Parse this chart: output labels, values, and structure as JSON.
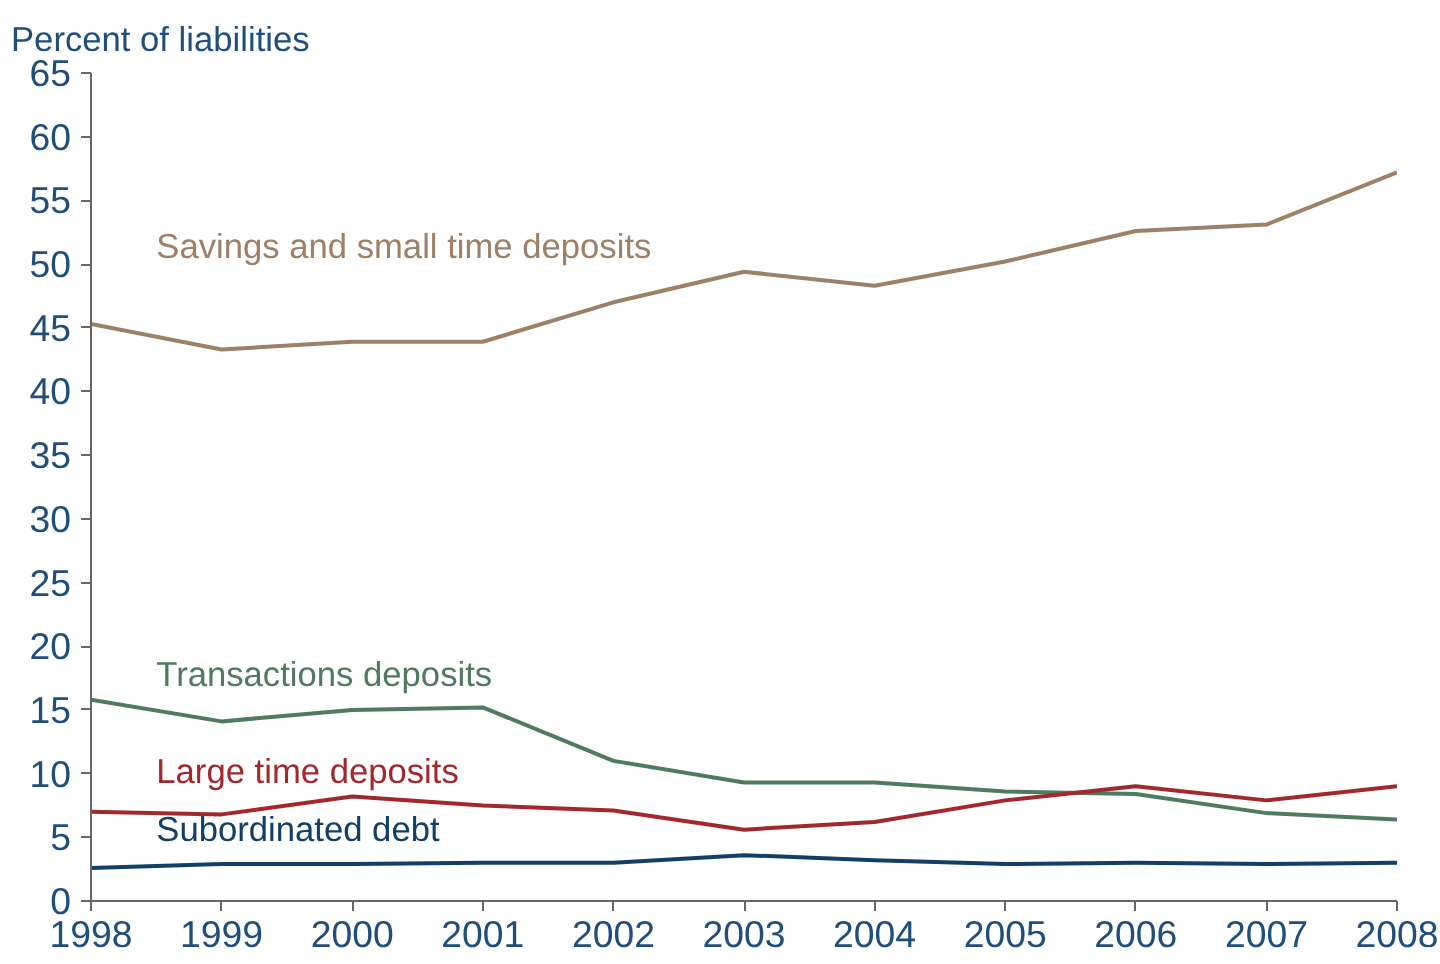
{
  "chart_data": {
    "type": "line",
    "ylabel": "Percent of liabilities",
    "x": [
      1998,
      1999,
      2000,
      2001,
      2002,
      2003,
      2004,
      2005,
      2006,
      2007,
      2008
    ],
    "series": [
      {
        "name": "Savings and small time deposits",
        "color": "#9c8068",
        "values": [
          45.3,
          43.3,
          43.9,
          43.9,
          47.0,
          49.4,
          48.3,
          50.2,
          52.6,
          53.1,
          57.2
        ]
      },
      {
        "name": "Transactions deposits",
        "color": "#4f7a5f",
        "values": [
          15.8,
          14.1,
          15.0,
          15.2,
          11.0,
          9.3,
          9.3,
          8.6,
          8.4,
          6.9,
          6.4
        ]
      },
      {
        "name": "Large time deposits",
        "color": "#a3282d",
        "values": [
          7.0,
          6.8,
          8.2,
          7.5,
          7.1,
          5.6,
          6.2,
          7.9,
          9.0,
          7.9,
          9.0
        ]
      },
      {
        "name": "Subordinated debt",
        "color": "#123f66",
        "values": [
          2.6,
          2.9,
          2.9,
          3.0,
          3.0,
          3.6,
          3.2,
          2.9,
          3.0,
          2.9,
          3.0
        ]
      }
    ],
    "xlim": [
      1998,
      2008
    ],
    "xticks": [
      1998,
      1999,
      2000,
      2001,
      2002,
      2003,
      2004,
      2005,
      2006,
      2007,
      2008
    ],
    "ylim": [
      0,
      65
    ],
    "yticks": [
      0,
      5,
      10,
      15,
      20,
      25,
      30,
      35,
      40,
      45,
      50,
      55,
      60,
      65
    ],
    "grid": false,
    "marker": "none",
    "line_style": "solid"
  }
}
